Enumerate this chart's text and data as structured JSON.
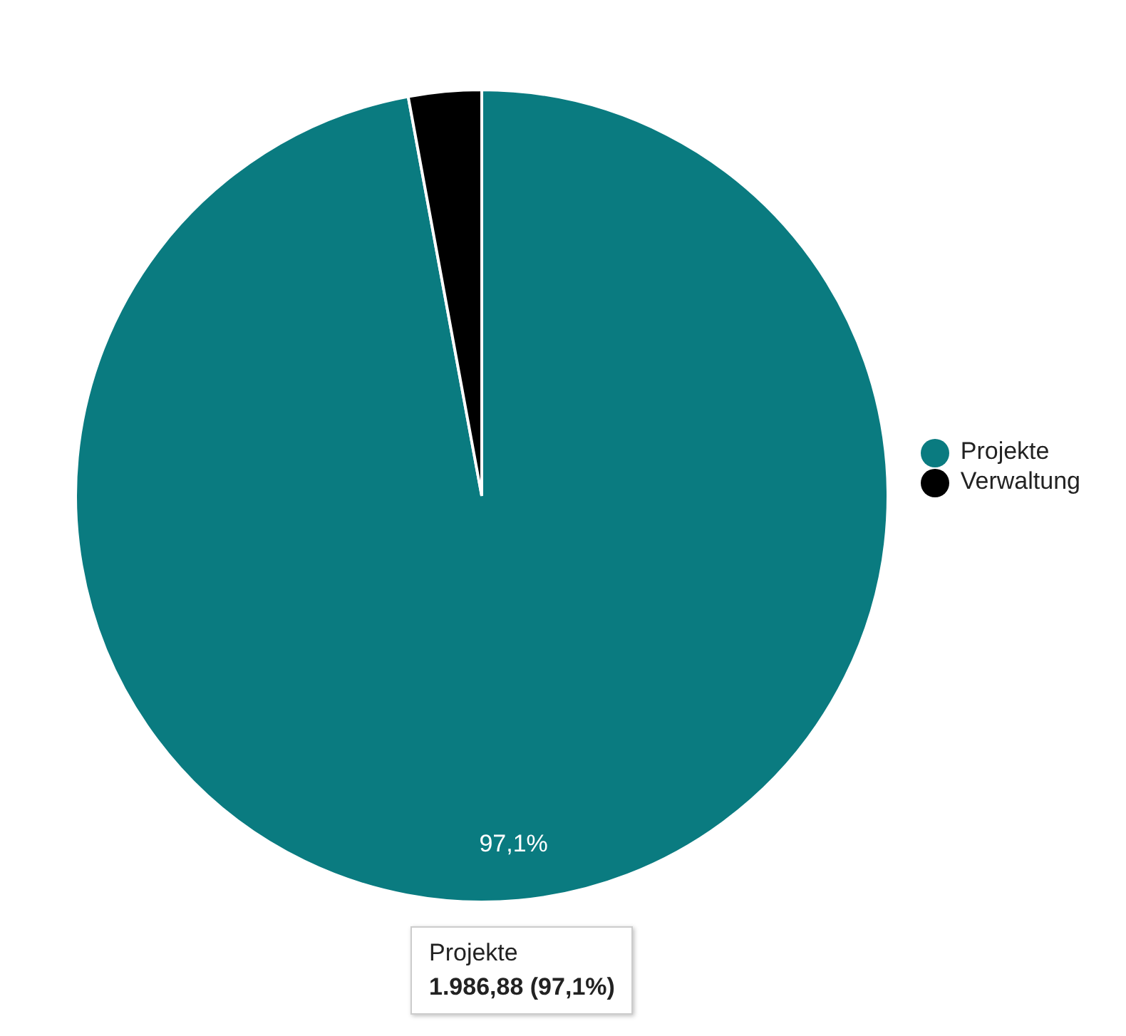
{
  "chart_data": {
    "type": "pie",
    "categories": [
      "Projekte",
      "Verwaltung"
    ],
    "values": [
      97.1,
      2.9
    ],
    "colors": [
      "#0a7b80",
      "#000000"
    ],
    "value_labels": [
      "97,1%",
      null
    ],
    "legend": "right",
    "annotations": [
      "Projekte\n1.986,88 (97,1%)"
    ]
  }
}
